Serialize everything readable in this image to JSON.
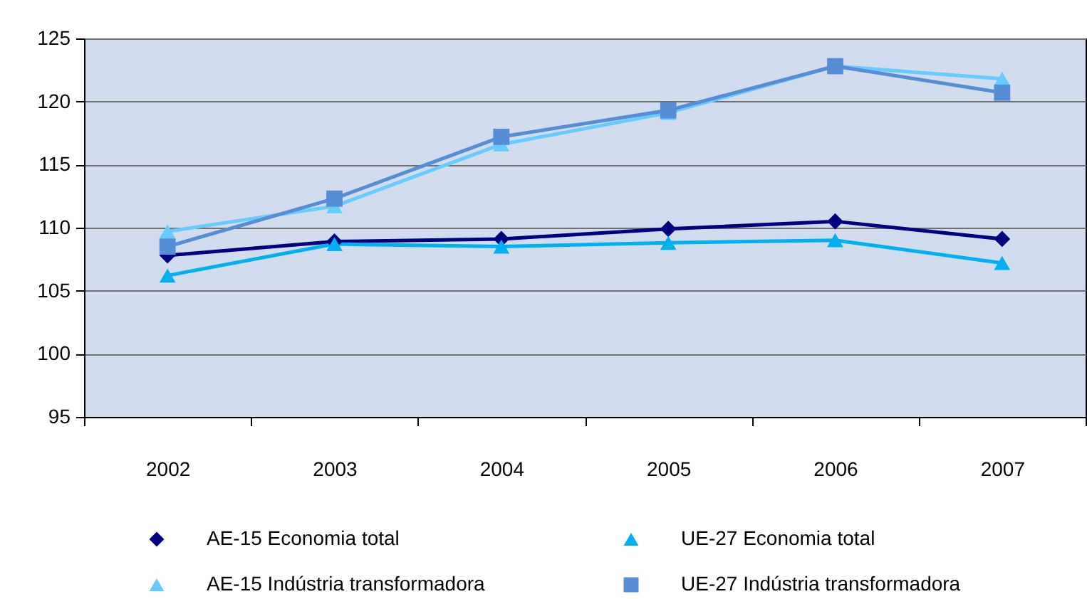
{
  "chart_data": {
    "type": "line",
    "categories": [
      "2002",
      "2003",
      "2004",
      "2005",
      "2006",
      "2007"
    ],
    "series": [
      {
        "name": "AE-15 Economia total",
        "color": "#000080",
        "marker": "diamond",
        "values": [
          107.8,
          108.9,
          109.1,
          109.9,
          110.5,
          109.1
        ]
      },
      {
        "name": "UE-27 Economia total",
        "color": "#00b0f0",
        "marker": "triangle",
        "values": [
          106.2,
          108.7,
          108.5,
          108.8,
          109.0,
          107.2
        ]
      },
      {
        "name": "AE-15 Indústria transformadora",
        "color": "#66ccff",
        "marker": "triangle",
        "values": [
          109.7,
          111.7,
          116.6,
          119.1,
          122.8,
          121.8
        ]
      },
      {
        "name": "UE-27 Indústria transformadora",
        "color": "#558ed5",
        "marker": "square",
        "values": [
          108.5,
          112.3,
          117.2,
          119.3,
          122.8,
          120.7
        ]
      }
    ],
    "ylim": [
      95,
      125
    ],
    "yticks": [
      95,
      100,
      105,
      110,
      115,
      120,
      125
    ],
    "grid": "y",
    "legend": "bottom",
    "line_style": "solid"
  }
}
